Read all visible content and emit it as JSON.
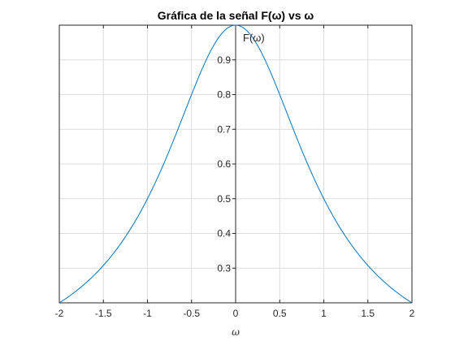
{
  "chart_data": {
    "type": "line",
    "title": "Gráfica de la señal F(ω) vs ω",
    "xlabel": "ω",
    "ylabel": "",
    "xlim": [
      -2,
      2
    ],
    "ylim": [
      0.2,
      1.0
    ],
    "x_ticks": [
      "-2",
      "-1.5",
      "-1",
      "-0.5",
      "0",
      "0.5",
      "1",
      "1.5",
      "2"
    ],
    "y_ticks": [
      "0.3",
      "0.4",
      "0.5",
      "0.6",
      "0.7",
      "0.8",
      "0.9"
    ],
    "grid": true,
    "annotation": "F(ω)",
    "series": [
      {
        "color": "#0072bd",
        "x": [
          -2,
          -1.75,
          -1.5,
          -1.25,
          -1,
          -0.75,
          -0.5,
          -0.25,
          0,
          0.25,
          0.5,
          0.75,
          1,
          1.25,
          1.5,
          1.75,
          2
        ],
        "y": [
          0.2,
          0.246,
          0.308,
          0.39,
          0.5,
          0.64,
          0.8,
          0.941,
          1.0,
          0.941,
          0.8,
          0.64,
          0.5,
          0.39,
          0.308,
          0.246,
          0.2
        ]
      }
    ]
  }
}
